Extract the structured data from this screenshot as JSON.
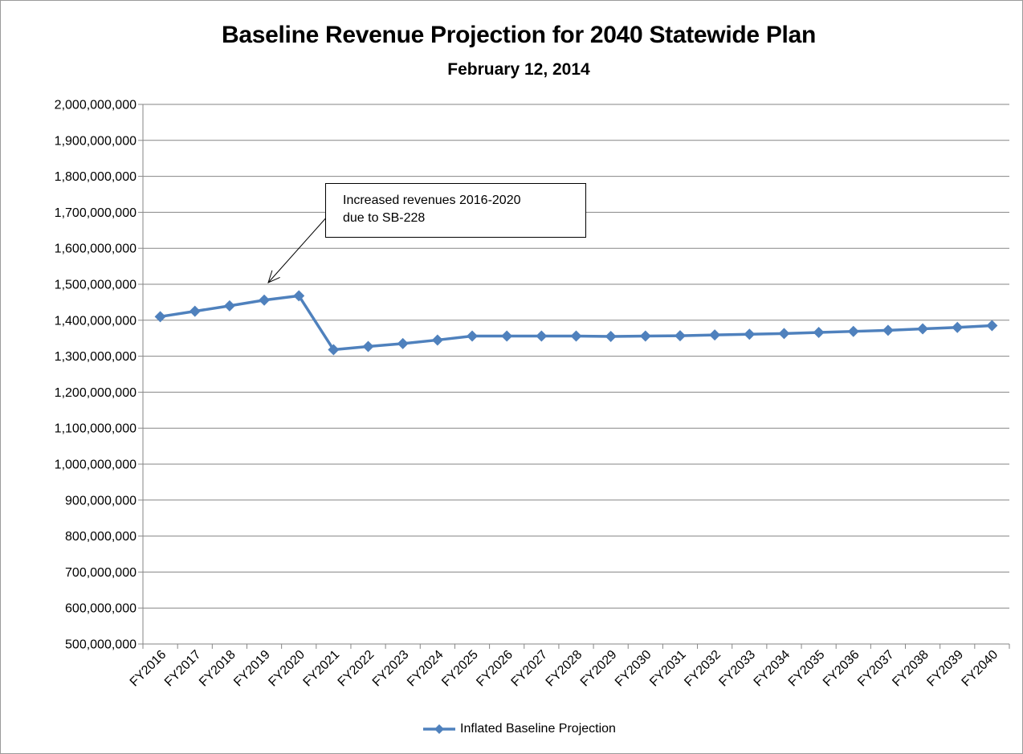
{
  "chart_data": {
    "type": "line",
    "title": "Baseline Revenue Projection for 2040 Statewide Plan",
    "subtitle": "February 12, 2014",
    "xlabel": "",
    "ylabel": "",
    "ylim": [
      500000000,
      2000000000
    ],
    "ytick_step": 100000000,
    "y_tick_labels": [
      "500,000,000",
      "600,000,000",
      "700,000,000",
      "800,000,000",
      "900,000,000",
      "1,000,000,000",
      "1,100,000,000",
      "1,200,000,000",
      "1,300,000,000",
      "1,400,000,000",
      "1,500,000,000",
      "1,600,000,000",
      "1,700,000,000",
      "1,800,000,000",
      "1,900,000,000",
      "2,000,000,000"
    ],
    "categories": [
      "FY2016",
      "FY2017",
      "FY2018",
      "FY2019",
      "FY2020",
      "FY2021",
      "FY2022",
      "FY2023",
      "FY2024",
      "FY2025",
      "FY2026",
      "FY2027",
      "FY2028",
      "FY2029",
      "FY2030",
      "FY2031",
      "FY2032",
      "FY2033",
      "FY2034",
      "FY2035",
      "FY2036",
      "FY2037",
      "FY2038",
      "FY2039",
      "FY2040"
    ],
    "series": [
      {
        "name": "Inflated Baseline Projection",
        "color": "#4f81bd",
        "marker": "diamond",
        "values": [
          1410000000,
          1425000000,
          1440000000,
          1456000000,
          1468000000,
          1318000000,
          1327000000,
          1335000000,
          1345000000,
          1356000000,
          1356000000,
          1356000000,
          1356000000,
          1355000000,
          1356000000,
          1357000000,
          1359000000,
          1361000000,
          1363000000,
          1366000000,
          1369000000,
          1372000000,
          1376000000,
          1380000000,
          1385000000
        ]
      }
    ],
    "grid": true,
    "legend_position": "bottom",
    "annotation": {
      "lines": [
        "Increased revenues 2016-2020",
        "due to SB-228"
      ],
      "points_to": {
        "x": "FY2019",
        "y": 1500000000
      }
    }
  }
}
